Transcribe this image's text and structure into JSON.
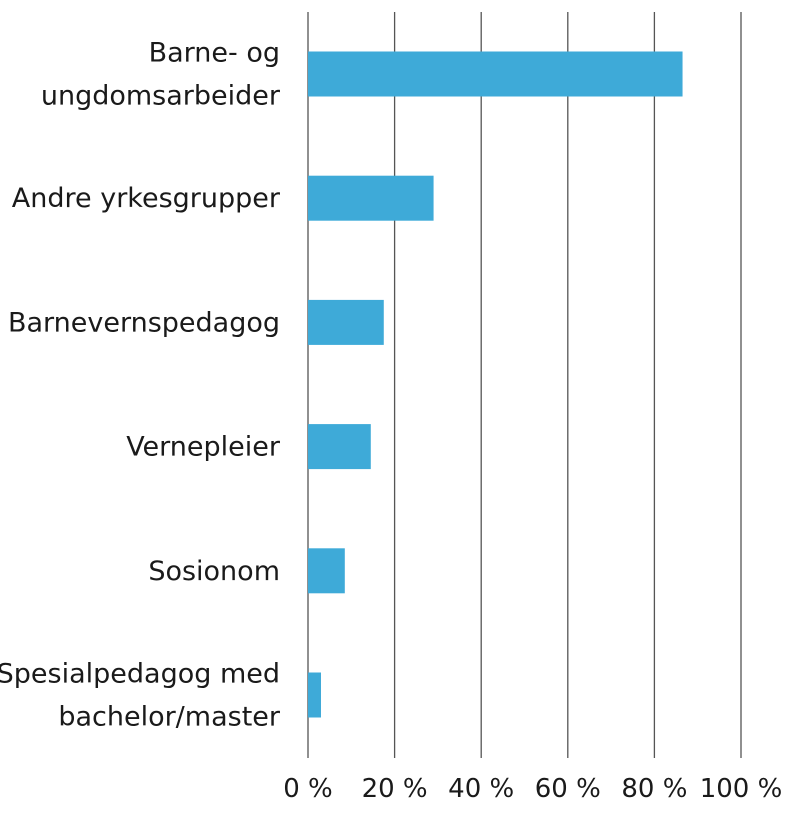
{
  "chart_data": {
    "type": "bar",
    "orientation": "horizontal",
    "categories": [
      [
        "Barne- og",
        "ungdomsarbeider"
      ],
      [
        "Andre yrkesgrupper"
      ],
      [
        "Barnevernspedagog"
      ],
      [
        "Vernepleier"
      ],
      [
        "Sosionom"
      ],
      [
        "Spesialpedagog med",
        "bachelor/master"
      ]
    ],
    "values": [
      86.5,
      29,
      17.5,
      14.5,
      8.5,
      3
    ],
    "xlim": [
      0,
      100
    ],
    "xticks": [
      0,
      20,
      40,
      60,
      80,
      100
    ],
    "xtick_labels": [
      "0 %",
      "20 %",
      "40 %",
      "60 %",
      "80 %",
      "100 %"
    ],
    "title": "",
    "xlabel": "",
    "ylabel": "",
    "grid": "vertical",
    "bar_color": "#3eaad8",
    "grid_color": "#555555"
  }
}
